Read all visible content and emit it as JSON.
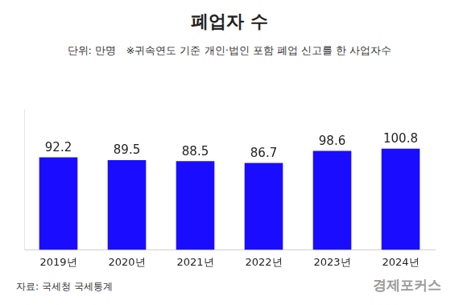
{
  "chart_data": {
    "type": "bar",
    "title": "폐업자 수",
    "subtitle": "단위: 만명   ※귀속연도 기준 개인·법인 포함 폐업 신고를 한 사업자수",
    "categories": [
      "2019년",
      "2020년",
      "2021년",
      "2022년",
      "2023년",
      "2024년"
    ],
    "values": [
      92.2,
      89.5,
      88.5,
      86.7,
      98.6,
      100.8
    ],
    "color": "#1a0dff",
    "ylim": [
      0,
      140
    ],
    "grid": false,
    "data_labels": true,
    "tick_labels": "x",
    "source": "자료: 국세청 국세통계",
    "logo": "경제포커스"
  }
}
